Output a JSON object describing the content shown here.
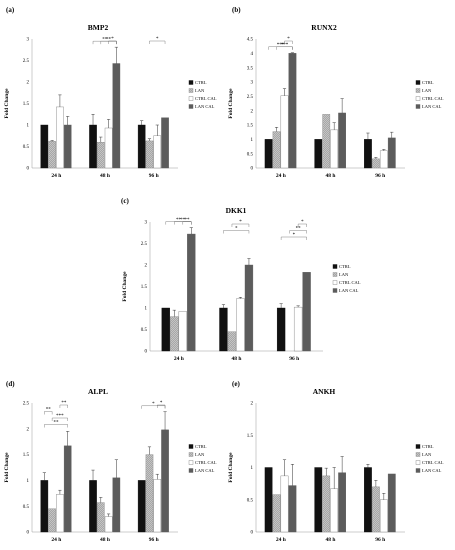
{
  "figure": {
    "panel_letters": [
      "(a)",
      "(b)",
      "(c)",
      "(d)",
      "(e)"
    ]
  },
  "chart_data": [
    {
      "type": "bar",
      "title": "BMP2",
      "ylabel": "Fold Change",
      "categories": [
        "24 h",
        "48 h",
        "96 h"
      ],
      "ylim": [
        0,
        3
      ],
      "yticks": [
        0,
        0.5,
        1,
        1.5,
        2,
        2.5,
        3
      ],
      "series": [
        {
          "name": "CTRL",
          "values": [
            1.0,
            1.0,
            1.0
          ],
          "errors": [
            0.0,
            0.25,
            0.1
          ]
        },
        {
          "name": "LAN",
          "values": [
            0.62,
            0.6,
            0.63
          ],
          "errors": [
            0.02,
            0.12,
            0.05
          ]
        },
        {
          "name": "CTRL CAL",
          "values": [
            1.42,
            0.93,
            0.75
          ],
          "errors": [
            0.28,
            0.2,
            0.25
          ]
        },
        {
          "name": "LAN CAL",
          "values": [
            1.0,
            2.43,
            1.17
          ],
          "errors": [
            0.2,
            0.38,
            0.0
          ]
        }
      ],
      "annotations": [
        {
          "group": 1,
          "from": 0,
          "to": 3,
          "text": "**"
        },
        {
          "group": 1,
          "from": 1,
          "to": 3,
          "text": "**"
        },
        {
          "group": 1,
          "from": 2,
          "to": 3,
          "text": "*"
        },
        {
          "group": 2,
          "from": 1,
          "to": 3,
          "text": "*"
        }
      ],
      "legend": "right"
    },
    {
      "type": "bar",
      "title": "RUNX2",
      "ylabel": "Fold Change",
      "categories": [
        "24 h",
        "48 h",
        "96 h"
      ],
      "ylim": [
        0,
        4.5
      ],
      "yticks": [
        0,
        0.5,
        1,
        1.5,
        2,
        2.5,
        3,
        3.5,
        4,
        4.5
      ],
      "series": [
        {
          "name": "CTRL",
          "values": [
            1.0,
            1.0,
            1.0
          ],
          "errors": [
            0.0,
            0.0,
            0.22
          ]
        },
        {
          "name": "LAN",
          "values": [
            1.27,
            1.87,
            0.32
          ],
          "errors": [
            0.15,
            0.0,
            0.05
          ]
        },
        {
          "name": "CTRL CAL",
          "values": [
            2.52,
            1.33,
            0.6
          ],
          "errors": [
            0.25,
            0.25,
            0.05
          ]
        },
        {
          "name": "LAN CAL",
          "values": [
            4.0,
            1.92,
            1.05
          ],
          "errors": [
            0.02,
            0.5,
            0.2
          ]
        }
      ],
      "annotations": [
        {
          "group": 0,
          "from": 0,
          "to": 3,
          "text": "***"
        },
        {
          "group": 0,
          "from": 1,
          "to": 3,
          "text": "***"
        },
        {
          "group": 0,
          "from": 2,
          "to": 3,
          "text": "*"
        }
      ],
      "legend": "right"
    },
    {
      "type": "bar",
      "title": "DKK1",
      "ylabel": "Fold Change",
      "categories": [
        "24 h",
        "48 h",
        "96 h"
      ],
      "ylim": [
        0,
        3
      ],
      "yticks": [
        0,
        0.5,
        1,
        1.5,
        2,
        2.5,
        3
      ],
      "series": [
        {
          "name": "CTRL",
          "values": [
            1.0,
            1.0,
            1.0
          ],
          "errors": [
            0.0,
            0.08,
            0.1
          ]
        },
        {
          "name": "LAN",
          "values": [
            0.8,
            0.45,
            0.0
          ],
          "errors": [
            0.15,
            0.0,
            0.0
          ]
        },
        {
          "name": "CTRL CAL",
          "values": [
            0.92,
            1.22,
            1.02
          ],
          "errors": [
            0.0,
            0.03,
            0.03
          ]
        },
        {
          "name": "LAN CAL",
          "values": [
            2.72,
            2.0,
            1.83
          ],
          "errors": [
            0.15,
            0.15,
            0.0
          ]
        }
      ],
      "annotations": [
        {
          "group": 0,
          "from": 0,
          "to": 3,
          "text": "**"
        },
        {
          "group": 0,
          "from": 1,
          "to": 3,
          "text": "**"
        },
        {
          "group": 0,
          "from": 2,
          "to": 3,
          "text": "**"
        },
        {
          "group": 1,
          "from": 0,
          "to": 3,
          "text": "*"
        },
        {
          "group": 1,
          "from": 1,
          "to": 3,
          "text": "*"
        },
        {
          "group": 2,
          "from": 0,
          "to": 3,
          "text": "*"
        },
        {
          "group": 2,
          "from": 1,
          "to": 3,
          "text": "**"
        },
        {
          "group": 2,
          "from": 2,
          "to": 3,
          "text": "*"
        }
      ],
      "legend": "right"
    },
    {
      "type": "bar",
      "title": "ALPL",
      "ylabel": "Fold Change",
      "categories": [
        "24 h",
        "48 h",
        "96 h"
      ],
      "ylim": [
        0,
        2.5
      ],
      "yticks": [
        0,
        0.5,
        1,
        1.5,
        2,
        2.5
      ],
      "series": [
        {
          "name": "CTRL",
          "values": [
            1.0,
            1.0,
            1.0
          ],
          "errors": [
            0.15,
            0.2,
            0.0
          ]
        },
        {
          "name": "LAN",
          "values": [
            0.45,
            0.57,
            1.5
          ],
          "errors": [
            0.0,
            0.1,
            0.15
          ]
        },
        {
          "name": "CTRL CAL",
          "values": [
            0.73,
            0.3,
            1.02
          ],
          "errors": [
            0.08,
            0.05,
            0.1
          ]
        },
        {
          "name": "LAN CAL",
          "values": [
            1.67,
            1.05,
            1.98
          ],
          "errors": [
            0.28,
            0.35,
            0.35
          ]
        }
      ],
      "annotations": [
        {
          "group": 0,
          "from": 0,
          "to": 3,
          "text": "**"
        },
        {
          "group": 0,
          "from": 1,
          "to": 3,
          "text": "***"
        },
        {
          "group": 0,
          "from": 0,
          "to": 1,
          "text": "**"
        },
        {
          "group": 0,
          "from": 2,
          "to": 3,
          "text": "**"
        },
        {
          "group": 2,
          "from": 0,
          "to": 3,
          "text": "*"
        },
        {
          "group": 2,
          "from": 2,
          "to": 3,
          "text": "*"
        }
      ],
      "legend": "right"
    },
    {
      "type": "bar",
      "title": "ANKH",
      "ylabel": "Fold Change",
      "categories": [
        "24 h",
        "48 h",
        "96 h"
      ],
      "ylim": [
        0,
        2
      ],
      "yticks": [
        0,
        0.5,
        1,
        1.5,
        2
      ],
      "series": [
        {
          "name": "CTRL",
          "values": [
            1.0,
            1.0,
            1.0
          ],
          "errors": [
            0.0,
            0.0,
            0.05
          ]
        },
        {
          "name": "LAN",
          "values": [
            0.58,
            0.87,
            0.7
          ],
          "errors": [
            0.0,
            0.12,
            0.1
          ]
        },
        {
          "name": "CTRL CAL",
          "values": [
            0.87,
            0.67,
            0.5
          ],
          "errors": [
            0.25,
            0.33,
            0.1
          ]
        },
        {
          "name": "LAN CAL",
          "values": [
            0.72,
            0.92,
            0.9
          ],
          "errors": [
            0.33,
            0.25,
            0.0
          ]
        }
      ],
      "annotations": [],
      "legend": "right"
    }
  ]
}
